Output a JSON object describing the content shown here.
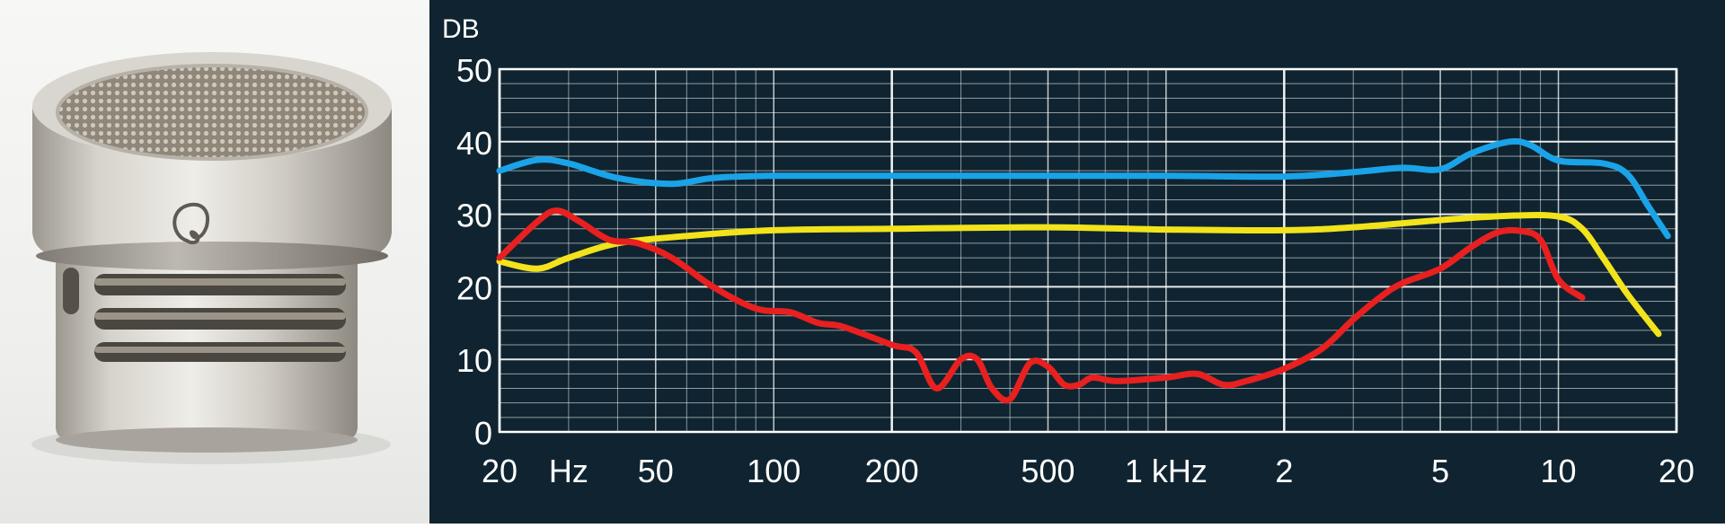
{
  "photo": {
    "logo_icon": "cardioid-polar-pattern-icon"
  },
  "chart_data": {
    "type": "line",
    "x_scale": "log",
    "x_range_hz": [
      20,
      20000
    ],
    "y_range": [
      0,
      50
    ],
    "ylabel": "DB",
    "y_ticks": [
      "0",
      "10",
      "20",
      "30",
      "40",
      "50"
    ],
    "x_ticks": [
      {
        "hz": 20,
        "label": "20"
      },
      {
        "hz": 30,
        "label": "Hz"
      },
      {
        "hz": 50,
        "label": "50"
      },
      {
        "hz": 100,
        "label": "100"
      },
      {
        "hz": 200,
        "label": "200"
      },
      {
        "hz": 500,
        "label": "500"
      },
      {
        "hz": 1000,
        "label": "1 kHz"
      },
      {
        "hz": 2000,
        "label": "2"
      },
      {
        "hz": 5000,
        "label": "5"
      },
      {
        "hz": 10000,
        "label": "10"
      },
      {
        "hz": 20000,
        "label": "20"
      }
    ],
    "grid": true,
    "background": "#0f2430",
    "series": [
      {
        "color": "#1aa3e8",
        "points": [
          [
            20,
            36
          ],
          [
            25,
            37.5
          ],
          [
            30,
            37
          ],
          [
            40,
            35
          ],
          [
            55,
            34.2
          ],
          [
            70,
            35
          ],
          [
            100,
            35.3
          ],
          [
            200,
            35.3
          ],
          [
            500,
            35.3
          ],
          [
            1000,
            35.3
          ],
          [
            2000,
            35.2
          ],
          [
            3000,
            35.8
          ],
          [
            4000,
            36.4
          ],
          [
            5000,
            36.2
          ],
          [
            6000,
            38.4
          ],
          [
            7500,
            40
          ],
          [
            8500,
            39.5
          ],
          [
            10000,
            37.4
          ],
          [
            13000,
            37
          ],
          [
            15000,
            35.5
          ],
          [
            17000,
            31
          ],
          [
            19000,
            27
          ]
        ]
      },
      {
        "color": "#f2e31b",
        "points": [
          [
            20,
            23.5
          ],
          [
            25,
            22.5
          ],
          [
            30,
            24
          ],
          [
            40,
            26
          ],
          [
            60,
            27
          ],
          [
            100,
            27.8
          ],
          [
            200,
            28
          ],
          [
            500,
            28.2
          ],
          [
            1000,
            27.9
          ],
          [
            2000,
            27.8
          ],
          [
            3000,
            28.2
          ],
          [
            5000,
            29.2
          ],
          [
            7500,
            29.8
          ],
          [
            10000,
            29.7
          ],
          [
            11500,
            28
          ],
          [
            13000,
            24
          ],
          [
            15000,
            19
          ],
          [
            18000,
            13.5
          ]
        ]
      },
      {
        "color": "#e8201f",
        "points": [
          [
            20,
            24
          ],
          [
            25,
            29
          ],
          [
            28,
            30.5
          ],
          [
            32,
            29
          ],
          [
            38,
            26.5
          ],
          [
            45,
            26
          ],
          [
            55,
            24
          ],
          [
            70,
            20
          ],
          [
            90,
            17
          ],
          [
            110,
            16.5
          ],
          [
            130,
            15
          ],
          [
            150,
            14.5
          ],
          [
            200,
            12
          ],
          [
            230,
            11
          ],
          [
            260,
            6
          ],
          [
            300,
            10
          ],
          [
            330,
            10
          ],
          [
            360,
            6
          ],
          [
            400,
            4.5
          ],
          [
            450,
            9.5
          ],
          [
            500,
            9
          ],
          [
            550,
            6.5
          ],
          [
            600,
            6.5
          ],
          [
            650,
            7.5
          ],
          [
            750,
            7
          ],
          [
            1000,
            7.5
          ],
          [
            1200,
            8
          ],
          [
            1400,
            6.5
          ],
          [
            1600,
            7
          ],
          [
            2000,
            8.7
          ],
          [
            2500,
            11.5
          ],
          [
            3000,
            15.5
          ],
          [
            3500,
            18.5
          ],
          [
            4000,
            20.5
          ],
          [
            5000,
            22.5
          ],
          [
            6000,
            25.5
          ],
          [
            7000,
            27.5
          ],
          [
            8000,
            27.7
          ],
          [
            9000,
            26.5
          ],
          [
            10000,
            21
          ],
          [
            11500,
            18.5
          ]
        ]
      }
    ]
  }
}
